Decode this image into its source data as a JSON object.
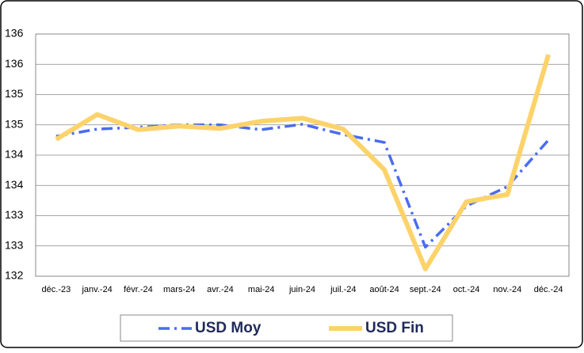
{
  "chart_data": {
    "type": "line",
    "categories": [
      "déc.-23",
      "janv.-24",
      "févr.-24",
      "mars-24",
      "avr.-24",
      "mai-24",
      "juin-24",
      "juil.-24",
      "août-24",
      "sept.-24",
      "oct.-24",
      "nov.-24",
      "déc.-24"
    ],
    "series": [
      {
        "name": "USD Moy",
        "color": "#4a6cf0",
        "values": [
          134.31,
          134.43,
          134.46,
          134.5,
          134.5,
          134.42,
          134.51,
          134.34,
          134.21,
          132.48,
          133.16,
          133.48,
          134.25
        ]
      },
      {
        "name": "USD Fin",
        "color": "#fcd36b",
        "values": [
          134.26,
          134.67,
          134.42,
          134.48,
          134.44,
          134.56,
          134.61,
          134.43,
          133.76,
          132.12,
          133.23,
          133.35,
          135.66
        ]
      }
    ],
    "ylim": [
      132,
      136
    ],
    "yticks": [
      132,
      {
        "value": 132.5,
        "label": "133"
      },
      133,
      {
        "value": 133.5,
        "label": "134"
      },
      134,
      {
        "value": 134.5,
        "label": "135"
      },
      135,
      {
        "value": 135.5,
        "label": "136"
      },
      136
    ],
    "grid": true,
    "legend": "bottom"
  }
}
